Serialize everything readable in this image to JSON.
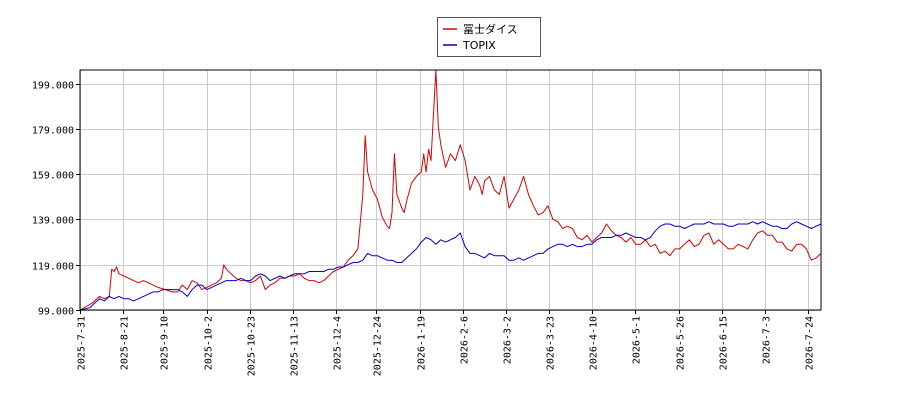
{
  "chart_data": {
    "type": "line",
    "title": "",
    "xlabel": "",
    "ylabel": "",
    "ylim": [
      99,
      205
    ],
    "y_ticks": [
      99,
      119,
      139,
      159,
      179,
      199
    ],
    "y_tick_labels": [
      "99.000",
      "119.000",
      "139.000",
      "159.000",
      "179.000",
      "199.000"
    ],
    "x_tick_labels": [
      "2025-7-31",
      "2025-8-21",
      "2025-9-10",
      "2025-10-2",
      "2025-10-23",
      "2025-11-13",
      "2025-12-4",
      "2025-12-24",
      "2026-1-19",
      "2026-2-6",
      "2026-3-2",
      "2026-3-23",
      "2026-4-10",
      "2026-5-1",
      "2026-5-26",
      "2026-6-15",
      "2026-7-3",
      "2026-7-24"
    ],
    "x_tick_positions": [
      0,
      15,
      29,
      44,
      59,
      74,
      89,
      103,
      118,
      133,
      148,
      163,
      178,
      193,
      208,
      223,
      238,
      253
    ],
    "n_points": 260,
    "grid": true,
    "legend": "top-center",
    "series": [
      {
        "name": "冨士ダイス",
        "color": "#dd0000",
        "keypoints": [
          [
            0,
            99
          ],
          [
            5,
            102
          ],
          [
            8,
            105
          ],
          [
            10,
            104
          ],
          [
            12,
            105
          ],
          [
            13,
            117
          ],
          [
            14,
            116
          ],
          [
            15,
            118
          ],
          [
            16,
            115
          ],
          [
            18,
            114
          ],
          [
            20,
            113
          ],
          [
            22,
            112
          ],
          [
            24,
            111
          ],
          [
            26,
            112
          ],
          [
            28,
            111
          ],
          [
            30,
            110
          ],
          [
            32,
            109
          ],
          [
            35,
            108
          ],
          [
            38,
            107
          ],
          [
            40,
            107
          ],
          [
            42,
            110
          ],
          [
            44,
            108
          ],
          [
            46,
            112
          ],
          [
            48,
            111
          ],
          [
            50,
            108
          ],
          [
            52,
            109
          ],
          [
            54,
            110
          ],
          [
            56,
            111
          ],
          [
            58,
            113
          ],
          [
            59,
            119
          ],
          [
            60,
            117
          ],
          [
            62,
            115
          ],
          [
            64,
            113
          ],
          [
            66,
            112
          ],
          [
            68,
            112
          ],
          [
            70,
            111
          ],
          [
            72,
            112
          ],
          [
            74,
            114
          ],
          [
            76,
            108
          ],
          [
            78,
            110
          ],
          [
            80,
            111
          ],
          [
            82,
            113
          ],
          [
            84,
            113
          ],
          [
            86,
            114
          ],
          [
            88,
            114
          ],
          [
            90,
            115
          ],
          [
            92,
            113
          ],
          [
            94,
            112
          ],
          [
            96,
            112
          ],
          [
            98,
            111
          ],
          [
            100,
            112
          ],
          [
            102,
            114
          ],
          [
            104,
            116
          ],
          [
            106,
            117
          ],
          [
            108,
            118
          ],
          [
            110,
            121
          ],
          [
            112,
            123
          ],
          [
            114,
            126
          ],
          [
            116,
            150
          ],
          [
            117,
            176
          ],
          [
            118,
            160
          ],
          [
            120,
            152
          ],
          [
            122,
            148
          ],
          [
            124,
            140
          ],
          [
            126,
            136
          ],
          [
            127,
            135
          ],
          [
            128,
            142
          ],
          [
            129,
            168
          ],
          [
            130,
            150
          ],
          [
            132,
            144
          ],
          [
            133,
            142
          ],
          [
            134,
            147
          ],
          [
            136,
            155
          ],
          [
            138,
            158
          ],
          [
            140,
            160
          ],
          [
            141,
            168
          ],
          [
            142,
            160
          ],
          [
            143,
            170
          ],
          [
            144,
            165
          ],
          [
            145,
            185
          ],
          [
            146,
            205
          ],
          [
            147,
            180
          ],
          [
            148,
            172
          ],
          [
            150,
            162
          ],
          [
            152,
            168
          ],
          [
            154,
            165
          ],
          [
            156,
            172
          ],
          [
            158,
            165
          ],
          [
            160,
            152
          ],
          [
            162,
            158
          ],
          [
            164,
            154
          ],
          [
            165,
            150
          ],
          [
            166,
            156
          ],
          [
            168,
            158
          ],
          [
            170,
            152
          ],
          [
            172,
            150
          ],
          [
            174,
            158
          ],
          [
            176,
            144
          ],
          [
            178,
            148
          ],
          [
            180,
            152
          ],
          [
            182,
            158
          ],
          [
            184,
            150
          ],
          [
            186,
            145
          ],
          [
            188,
            141
          ],
          [
            190,
            142
          ],
          [
            192,
            145
          ],
          [
            194,
            139
          ],
          [
            196,
            138
          ],
          [
            198,
            135
          ],
          [
            200,
            136
          ],
          [
            202,
            135
          ],
          [
            204,
            131
          ],
          [
            206,
            130
          ],
          [
            208,
            132
          ],
          [
            210,
            129
          ],
          [
            212,
            131
          ],
          [
            214,
            133
          ],
          [
            216,
            137
          ],
          [
            218,
            134
          ],
          [
            220,
            132
          ],
          [
            222,
            131
          ],
          [
            224,
            129
          ],
          [
            226,
            131
          ],
          [
            228,
            128
          ],
          [
            230,
            128
          ],
          [
            232,
            130
          ],
          [
            234,
            127
          ],
          [
            236,
            128
          ],
          [
            238,
            124
          ],
          [
            240,
            125
          ],
          [
            242,
            123
          ],
          [
            244,
            126
          ],
          [
            246,
            126
          ],
          [
            248,
            128
          ],
          [
            250,
            130
          ],
          [
            252,
            127
          ],
          [
            254,
            128
          ],
          [
            256,
            132
          ],
          [
            258,
            133
          ],
          [
            260,
            128
          ],
          [
            262,
            130
          ],
          [
            264,
            128
          ],
          [
            266,
            126
          ],
          [
            268,
            126
          ],
          [
            270,
            128
          ],
          [
            272,
            127
          ],
          [
            274,
            126
          ],
          [
            276,
            130
          ],
          [
            278,
            133
          ],
          [
            280,
            134
          ],
          [
            282,
            132
          ],
          [
            284,
            132
          ],
          [
            286,
            129
          ],
          [
            288,
            129
          ],
          [
            290,
            126
          ],
          [
            292,
            125
          ],
          [
            294,
            128
          ],
          [
            296,
            128
          ],
          [
            298,
            126
          ],
          [
            300,
            121
          ],
          [
            302,
            122
          ],
          [
            304,
            124
          ]
        ]
      },
      {
        "name": "TOPIX",
        "color": "#0000cc",
        "keypoints": [
          [
            0,
            99
          ],
          [
            4,
            100
          ],
          [
            6,
            102
          ],
          [
            8,
            104
          ],
          [
            10,
            103
          ],
          [
            12,
            105
          ],
          [
            14,
            104
          ],
          [
            16,
            105
          ],
          [
            18,
            104
          ],
          [
            20,
            104
          ],
          [
            22,
            103
          ],
          [
            24,
            104
          ],
          [
            26,
            105
          ],
          [
            28,
            106
          ],
          [
            30,
            107
          ],
          [
            32,
            107
          ],
          [
            34,
            108
          ],
          [
            36,
            108
          ],
          [
            38,
            108
          ],
          [
            40,
            108
          ],
          [
            42,
            107
          ],
          [
            44,
            105
          ],
          [
            46,
            108
          ],
          [
            48,
            110
          ],
          [
            50,
            110
          ],
          [
            52,
            108
          ],
          [
            54,
            109
          ],
          [
            56,
            110
          ],
          [
            58,
            111
          ],
          [
            60,
            112
          ],
          [
            62,
            112
          ],
          [
            64,
            112
          ],
          [
            66,
            113
          ],
          [
            68,
            112
          ],
          [
            70,
            112
          ],
          [
            72,
            114
          ],
          [
            74,
            115
          ],
          [
            76,
            114
          ],
          [
            78,
            112
          ],
          [
            80,
            113
          ],
          [
            82,
            114
          ],
          [
            84,
            113
          ],
          [
            86,
            114
          ],
          [
            88,
            115
          ],
          [
            90,
            115
          ],
          [
            92,
            115
          ],
          [
            94,
            116
          ],
          [
            96,
            116
          ],
          [
            98,
            116
          ],
          [
            100,
            116
          ],
          [
            102,
            117
          ],
          [
            104,
            117
          ],
          [
            106,
            118
          ],
          [
            108,
            118
          ],
          [
            110,
            119
          ],
          [
            112,
            120
          ],
          [
            114,
            120
          ],
          [
            116,
            121
          ],
          [
            118,
            124
          ],
          [
            120,
            123
          ],
          [
            122,
            123
          ],
          [
            124,
            122
          ],
          [
            126,
            121
          ],
          [
            128,
            121
          ],
          [
            130,
            120
          ],
          [
            132,
            120
          ],
          [
            134,
            122
          ],
          [
            136,
            124
          ],
          [
            138,
            126
          ],
          [
            140,
            129
          ],
          [
            142,
            131
          ],
          [
            144,
            130
          ],
          [
            146,
            128
          ],
          [
            148,
            130
          ],
          [
            150,
            129
          ],
          [
            152,
            130
          ],
          [
            154,
            131
          ],
          [
            156,
            133
          ],
          [
            158,
            127
          ],
          [
            160,
            124
          ],
          [
            162,
            124
          ],
          [
            164,
            123
          ],
          [
            166,
            122
          ],
          [
            168,
            124
          ],
          [
            170,
            123
          ],
          [
            172,
            123
          ],
          [
            174,
            123
          ],
          [
            176,
            121
          ],
          [
            178,
            121
          ],
          [
            180,
            122
          ],
          [
            182,
            121
          ],
          [
            184,
            122
          ],
          [
            186,
            123
          ],
          [
            188,
            124
          ],
          [
            190,
            124
          ],
          [
            192,
            126
          ],
          [
            194,
            127
          ],
          [
            196,
            128
          ],
          [
            198,
            128
          ],
          [
            200,
            127
          ],
          [
            202,
            128
          ],
          [
            204,
            127
          ],
          [
            206,
            127
          ],
          [
            208,
            128
          ],
          [
            210,
            128
          ],
          [
            212,
            130
          ],
          [
            214,
            131
          ],
          [
            216,
            131
          ],
          [
            218,
            131
          ],
          [
            220,
            132
          ],
          [
            222,
            132
          ],
          [
            224,
            133
          ],
          [
            226,
            132
          ],
          [
            228,
            131
          ],
          [
            230,
            131
          ],
          [
            232,
            130
          ],
          [
            234,
            131
          ],
          [
            236,
            134
          ],
          [
            238,
            136
          ],
          [
            240,
            137
          ],
          [
            242,
            137
          ],
          [
            244,
            136
          ],
          [
            246,
            136
          ],
          [
            248,
            135
          ],
          [
            250,
            136
          ],
          [
            252,
            137
          ],
          [
            254,
            137
          ],
          [
            256,
            137
          ],
          [
            258,
            138
          ],
          [
            260,
            137
          ],
          [
            262,
            137
          ],
          [
            264,
            137
          ],
          [
            266,
            136
          ],
          [
            268,
            136
          ],
          [
            270,
            137
          ],
          [
            272,
            137
          ],
          [
            274,
            137
          ],
          [
            276,
            138
          ],
          [
            278,
            137
          ],
          [
            280,
            138
          ],
          [
            282,
            137
          ],
          [
            284,
            136
          ],
          [
            286,
            136
          ],
          [
            288,
            135
          ],
          [
            290,
            135
          ],
          [
            292,
            137
          ],
          [
            294,
            138
          ],
          [
            296,
            137
          ],
          [
            298,
            136
          ],
          [
            300,
            135
          ],
          [
            302,
            136
          ],
          [
            304,
            137
          ]
        ]
      }
    ]
  }
}
